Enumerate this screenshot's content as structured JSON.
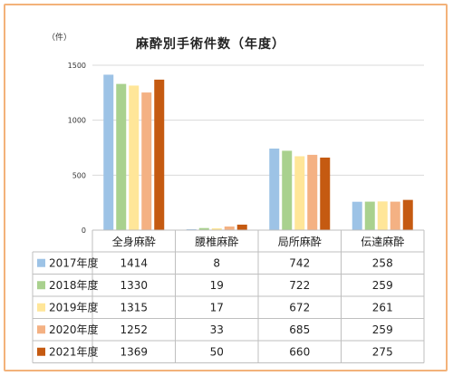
{
  "chart_data": {
    "type": "bar",
    "title": "麻酔別手術件数（年度）",
    "unit": "（件）",
    "ylim": [
      0,
      1500
    ],
    "yticks": [
      0,
      500,
      1000,
      1500
    ],
    "grid": true,
    "categories": [
      "全身麻酔",
      "腰椎麻酔",
      "局所麻酔",
      "伝達麻酔"
    ],
    "series": [
      {
        "name": "2017年度",
        "color": "#9dc3e6",
        "values": [
          1414,
          8,
          742,
          258
        ]
      },
      {
        "name": "2018年度",
        "color": "#a9d18e",
        "values": [
          1330,
          19,
          722,
          259
        ]
      },
      {
        "name": "2019年度",
        "color": "#ffe699",
        "values": [
          1315,
          17,
          672,
          261
        ]
      },
      {
        "name": "2020年度",
        "color": "#f4b183",
        "values": [
          1252,
          33,
          685,
          259
        ]
      },
      {
        "name": "2021年度",
        "color": "#c55a11",
        "values": [
          1369,
          50,
          660,
          275
        ]
      }
    ]
  }
}
